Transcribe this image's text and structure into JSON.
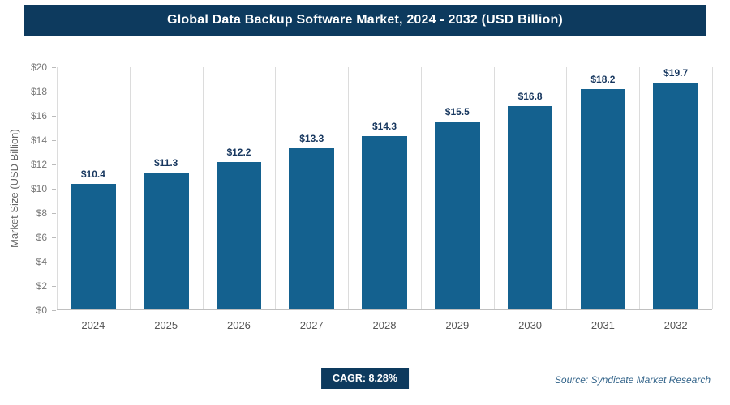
{
  "header": {
    "title": "Global Data Backup Software Market, 2024 - 2032 (USD Billion)"
  },
  "chart_data": {
    "type": "bar",
    "title": "Global Data Backup Software Market, 2024 - 2032 (USD Billion)",
    "categories": [
      "2024",
      "2025",
      "2026",
      "2027",
      "2028",
      "2029",
      "2030",
      "2031",
      "2032"
    ],
    "values": [
      10.4,
      11.3,
      12.2,
      13.3,
      14.3,
      15.5,
      16.8,
      18.2,
      19.7
    ],
    "value_labels": [
      "$10.4",
      "$11.3",
      "$12.2",
      "$13.3",
      "$14.3",
      "$15.5",
      "$16.8",
      "$18.2",
      "$19.7"
    ],
    "xlabel": "",
    "ylabel": "Market Size (USD Billion)",
    "ylim": [
      0,
      20
    ],
    "ytick_step": 2,
    "ytick_prefix": "$",
    "grid": "vertical",
    "legend": "none",
    "bar_color": "#14618f"
  },
  "footer": {
    "cagr_label": "CAGR: 8.28%",
    "source": "Source: Syndicate Market Research"
  }
}
